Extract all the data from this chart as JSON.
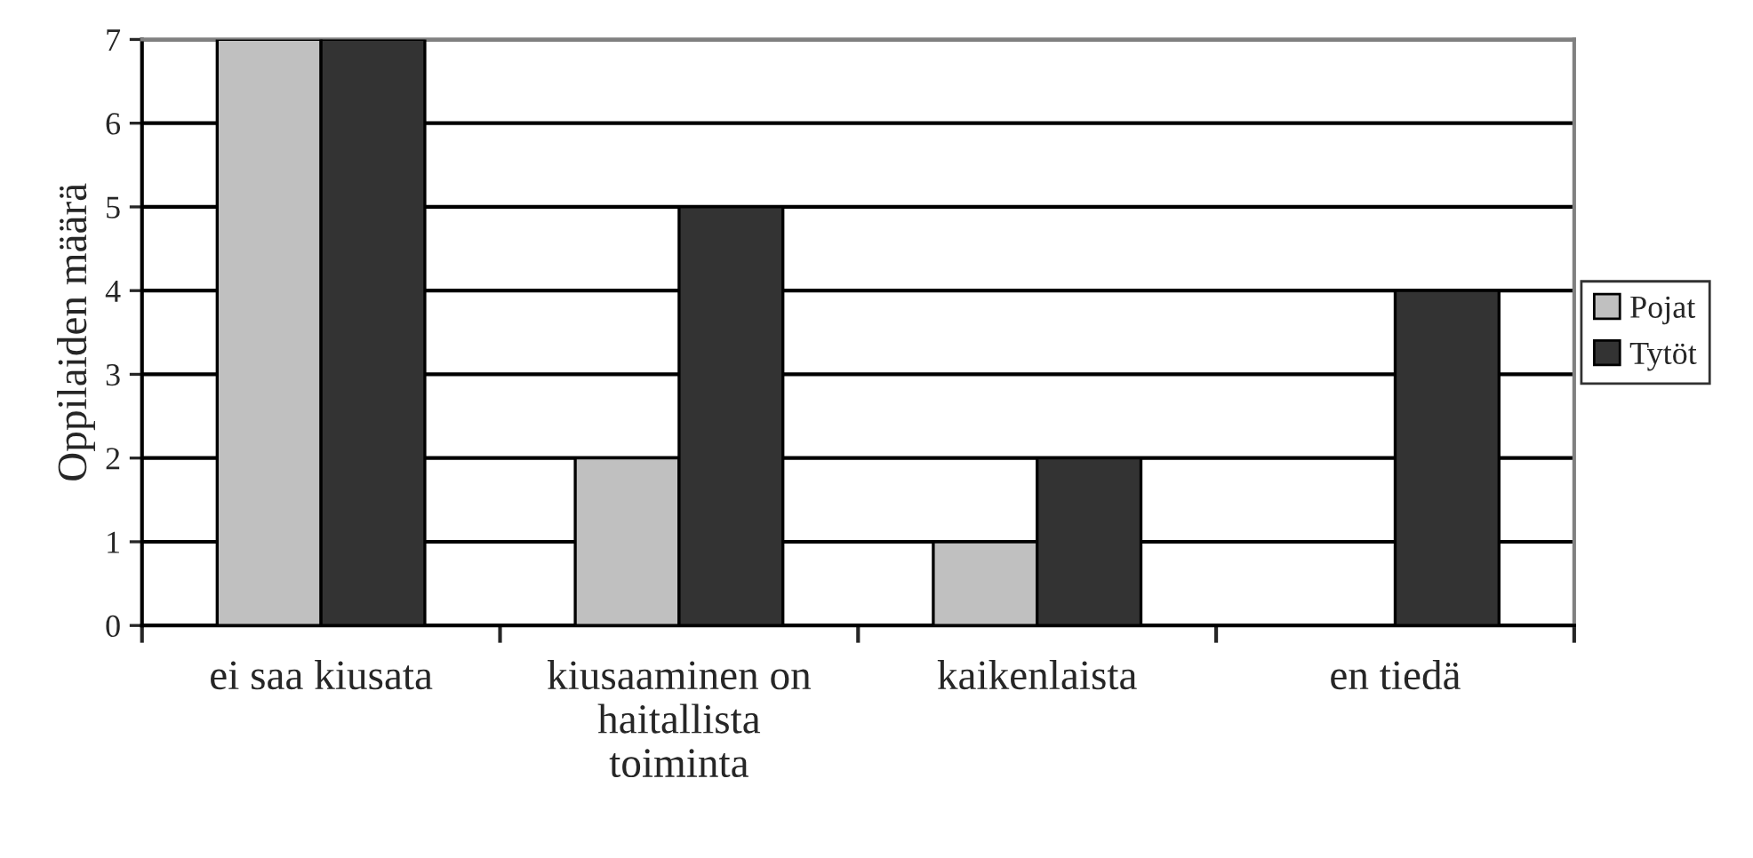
{
  "chart_data": {
    "type": "bar",
    "ylabel": "Oppilaiden määrä",
    "categories": [
      "ei saa kiusata",
      "kiusaaminen on\nhaitallista\ntoiminta",
      "kaikenlaista",
      "en tiedä"
    ],
    "series": [
      {
        "name": "Pojat",
        "color": "#c0c0c0",
        "values": [
          7,
          2,
          1,
          0
        ]
      },
      {
        "name": "Tytöt",
        "color": "#333333",
        "values": [
          7,
          5,
          2,
          4
        ]
      }
    ],
    "ylim": [
      0,
      7
    ],
    "yticks": [
      0,
      1,
      2,
      3,
      4,
      5,
      6,
      7
    ],
    "grid": "y",
    "legend": "right"
  }
}
